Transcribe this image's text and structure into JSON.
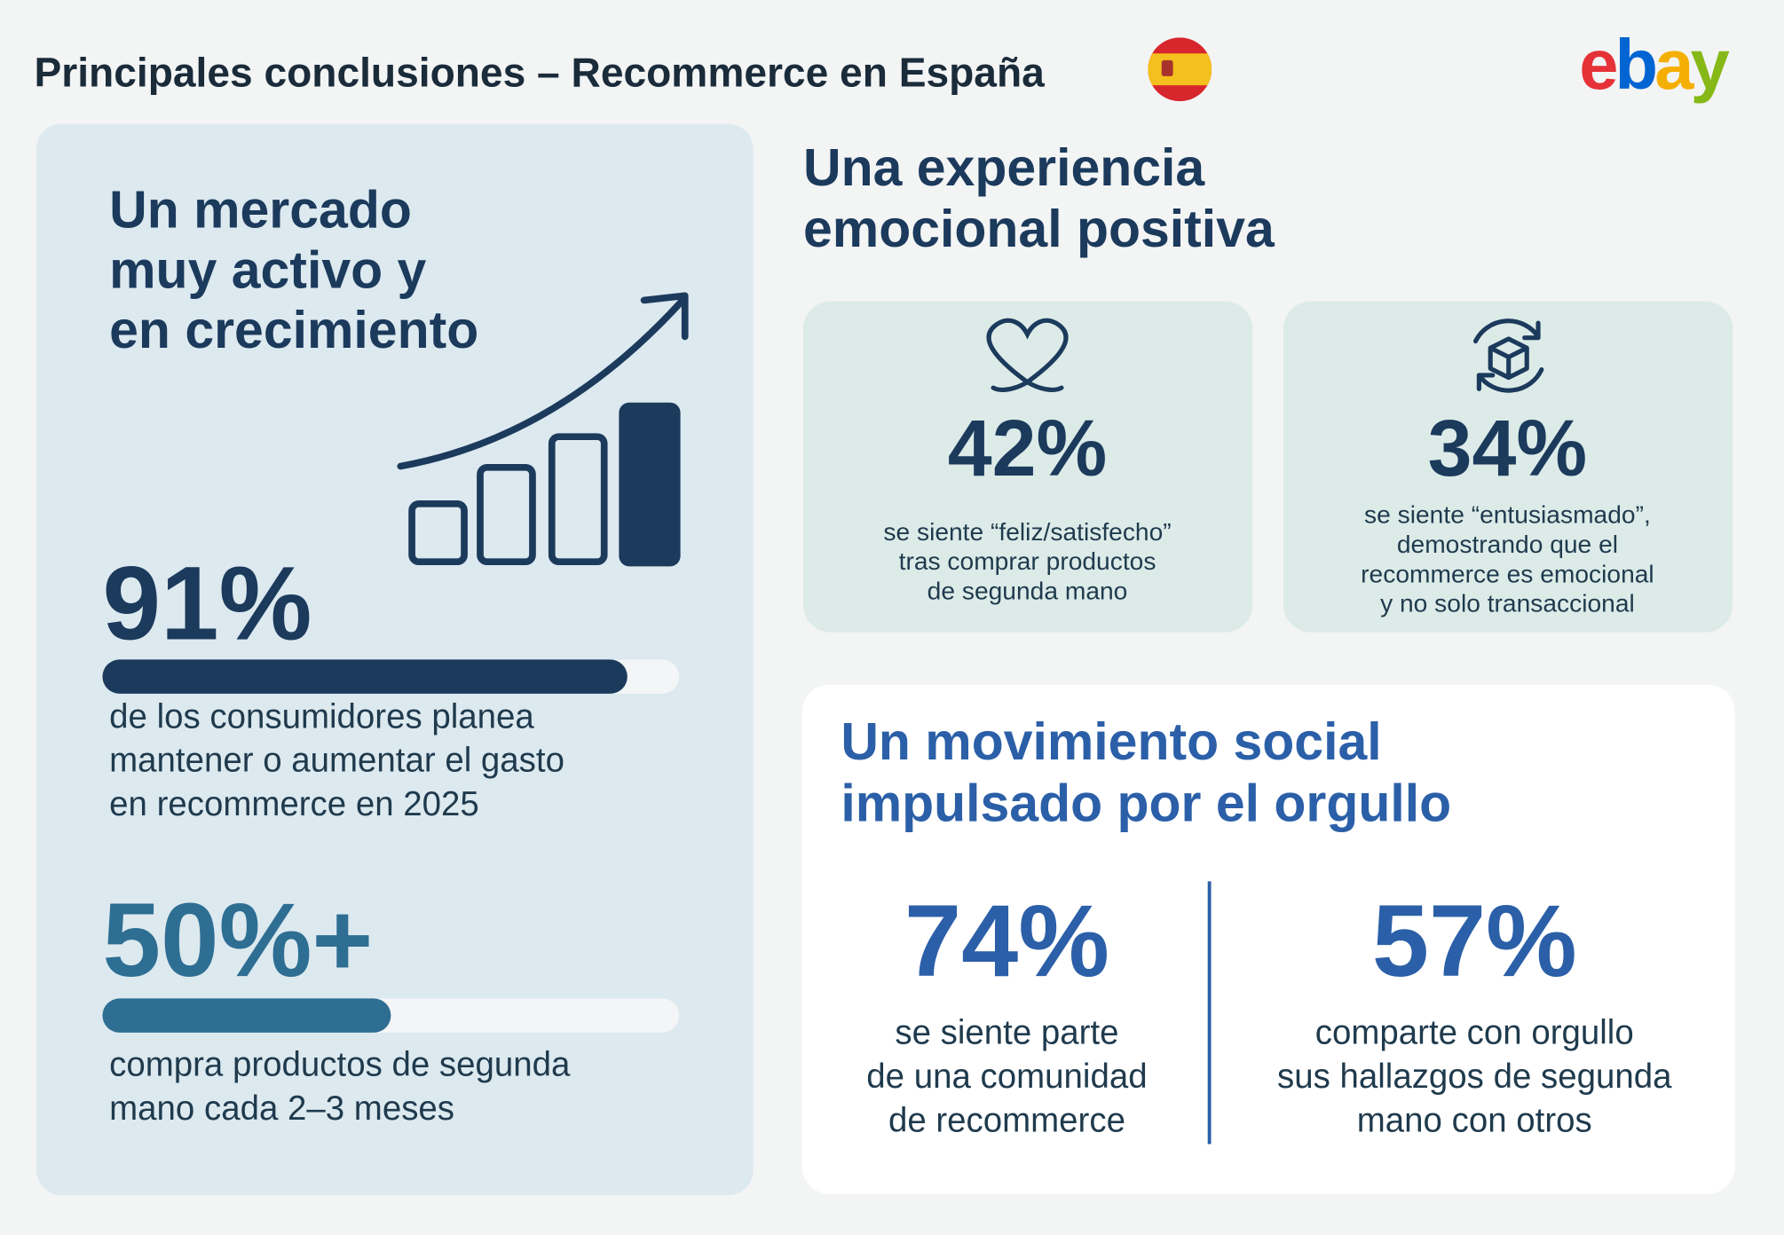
{
  "header": {
    "title": "Principales conclusiones – Recommerce en España",
    "logo": "ebay"
  },
  "market": {
    "title": [
      "Un mercado",
      "muy activo y",
      "en crecimiento"
    ],
    "stats": [
      {
        "value": 91,
        "label": "91%",
        "text": [
          "de los consumidores planea",
          "mantener o aumentar el gasto",
          "en recommerce en 2025"
        ]
      },
      {
        "value": 50,
        "label": "50%+",
        "text": [
          "compra productos de segunda",
          "mano cada 2–3 meses"
        ]
      }
    ]
  },
  "emotional": {
    "title": [
      "Una experiencia",
      "emocional positiva"
    ],
    "cards": [
      {
        "label": "42%",
        "text": [
          "se siente “feliz/satisfecho”",
          "tras comprar productos",
          "de segunda mano"
        ]
      },
      {
        "label": "34%",
        "text": [
          "se siente “entusiasmado”,",
          "demostrando que el",
          "recommerce es emocional",
          "y no solo transaccional"
        ]
      }
    ]
  },
  "social": {
    "title": [
      "Un movimiento social",
      "impulsado por el orgullo"
    ],
    "stats": [
      {
        "label": "74%",
        "text": [
          "se siente parte",
          "de una comunidad",
          "de recommerce"
        ]
      },
      {
        "label": "57%",
        "text": [
          "comparte con orgullo",
          "sus hallazgos de segunda",
          "mano con otros"
        ]
      }
    ]
  }
}
